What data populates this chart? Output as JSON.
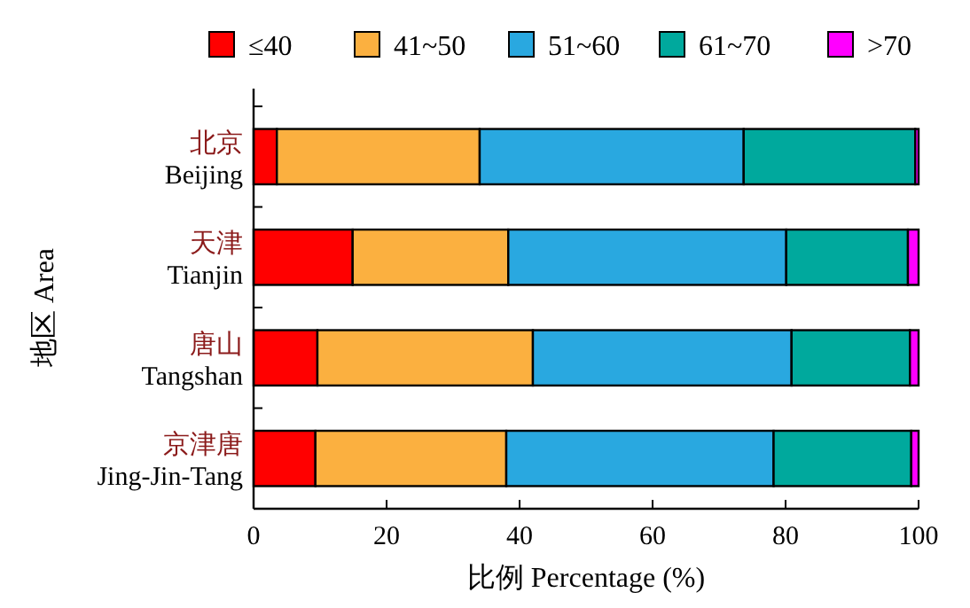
{
  "chart_data": {
    "type": "bar",
    "orientation": "horizontal",
    "stacked": true,
    "xlabel": "比例 Percentage (%)",
    "ylabel": "地区 Area",
    "categories": [
      "北京\nBeijing",
      "天津\nTianjin",
      "唐山\nTangshan",
      "京津唐\nJing-Jin-Tang"
    ],
    "series": [
      {
        "name": "≤40",
        "color": "#ff0000",
        "values": [
          3.5,
          14.9,
          9.6,
          9.3
        ]
      },
      {
        "name": "41~50",
        "color": "#fbb040",
        "values": [
          30.5,
          23.4,
          32.4,
          28.7
        ]
      },
      {
        "name": "51~60",
        "color": "#29a8e0",
        "values": [
          39.7,
          41.8,
          38.9,
          40.2
        ]
      },
      {
        "name": "61~70",
        "color": "#00a99d",
        "values": [
          25.8,
          18.3,
          17.8,
          20.7
        ]
      },
      {
        "name": ">70",
        "color": "#ff00ff",
        "values": [
          0.5,
          1.6,
          1.3,
          1.1
        ]
      }
    ],
    "xlim": [
      0,
      100
    ],
    "xticks": [
      0,
      20,
      40,
      60,
      80,
      100
    ],
    "legend": "top",
    "grid": false
  }
}
